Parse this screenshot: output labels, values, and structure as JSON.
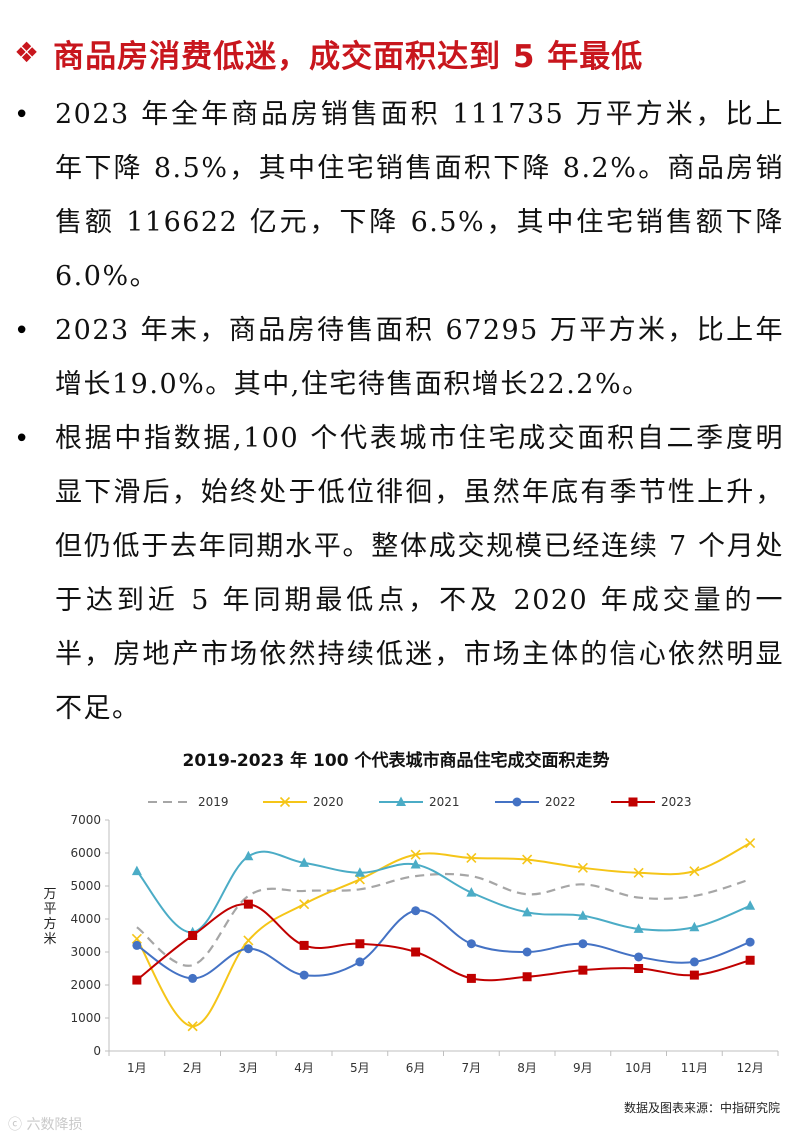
{
  "header": {
    "icon": "diamond-bullet-icon",
    "title": "商品房消费低迷，成交面积达到 5 年最低"
  },
  "bullets": [
    "2023 年全年商品房销售面积 111735 万平方米，比上年下降 8.5%，其中住宅销售面积下降 8.2%。商品房销售额 116622 亿元，下降 6.5%，其中住宅销售额下降 6.0%。",
    "2023 年末，商品房待售面积 67295 万平方米，比上年增长19.0%。其中,住宅待售面积增长22.2%。",
    "根据中指数据,100 个代表城市住宅成交面积自二季度明显下滑后，始终处于低位徘徊，虽然年底有季节性上升，但仍低于去年同期水平。整体成交规模已经连续 7 个月处于达到近 5 年同期最低点，不及 2020 年成交量的一半，房地产市场依然持续低迷，市场主体的信心依然明显不足。"
  ],
  "chart_data": {
    "type": "line",
    "title": "2019-2023 年 100 个代表城市商品住宅成交面积走势",
    "ylabel": "万平方米",
    "xlabel": "",
    "categories": [
      "1月",
      "2月",
      "3月",
      "4月",
      "5月",
      "6月",
      "7月",
      "8月",
      "9月",
      "10月",
      "11月",
      "12月"
    ],
    "yticks": [
      0,
      1000,
      2000,
      3000,
      4000,
      5000,
      6000,
      7000
    ],
    "ylim": [
      0,
      7000
    ],
    "grid": false,
    "legend_position": "top",
    "source": "数据及图表来源：中指研究院",
    "series": [
      {
        "name": "2019",
        "color": "#a6a6a6",
        "style": "dashed",
        "marker": "none",
        "values": [
          3750,
          2600,
          4700,
          4850,
          4900,
          5300,
          5300,
          4750,
          5050,
          4650,
          4700,
          5200
        ]
      },
      {
        "name": "2020",
        "color": "#f5c518",
        "style": "solid",
        "marker": "x",
        "values": [
          3400,
          750,
          3350,
          4450,
          5200,
          5950,
          5850,
          5800,
          5550,
          5400,
          5450,
          6300
        ]
      },
      {
        "name": "2021",
        "color": "#4bacc6",
        "style": "solid",
        "marker": "triangle",
        "values": [
          5450,
          3600,
          5900,
          5700,
          5400,
          5650,
          4800,
          4200,
          4100,
          3700,
          3750,
          4400
        ]
      },
      {
        "name": "2022",
        "color": "#4472c4",
        "style": "solid",
        "marker": "circle",
        "values": [
          3200,
          2200,
          3100,
          2300,
          2700,
          4250,
          3250,
          3000,
          3250,
          2850,
          2700,
          3300
        ]
      },
      {
        "name": "2023",
        "color": "#c00000",
        "style": "solid",
        "marker": "square",
        "values": [
          2150,
          3500,
          4450,
          3200,
          3250,
          3000,
          2200,
          2250,
          2450,
          2500,
          2300,
          2750
        ]
      }
    ]
  },
  "watermark": "六数降损"
}
